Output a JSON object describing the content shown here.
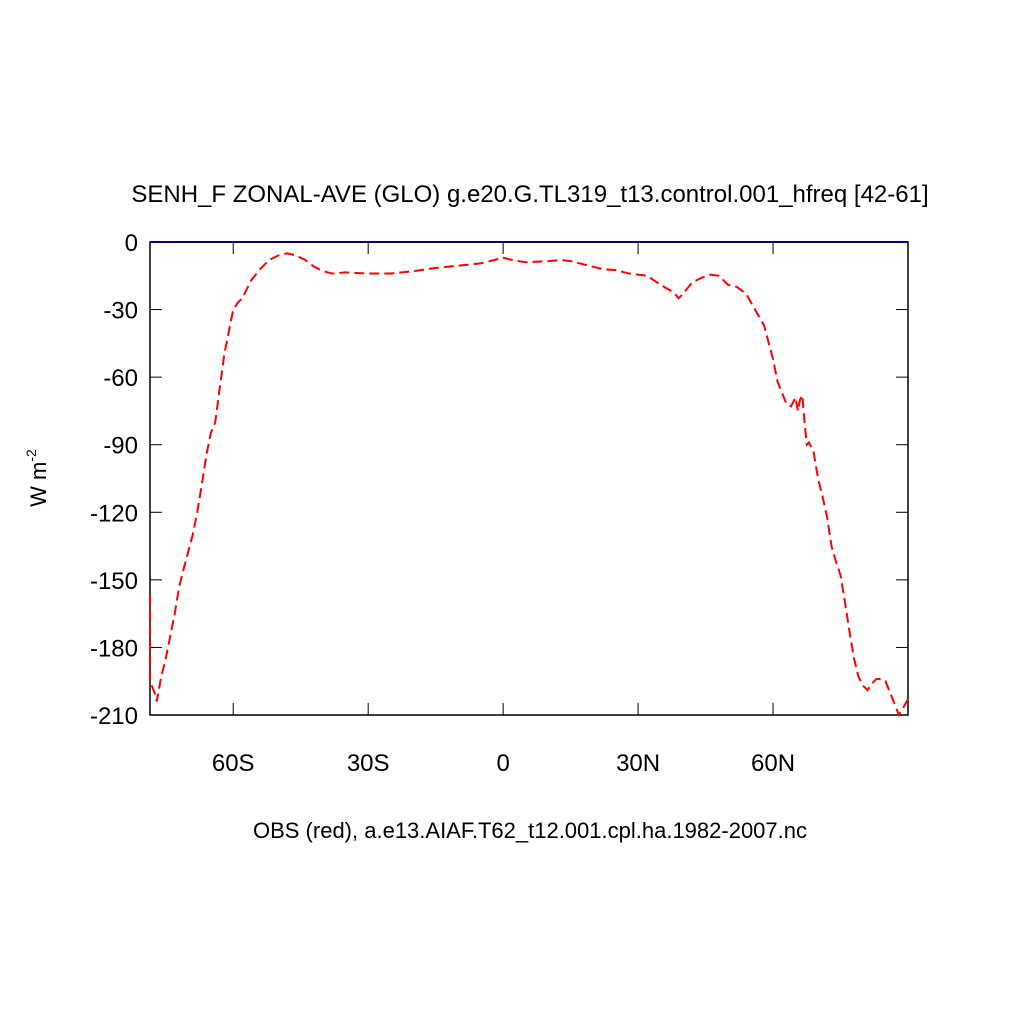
{
  "chart_data": {
    "type": "line",
    "title": "SENH_F ZONAL-AVE (GLO) g.e20.G.TL319_t13.control.001_hfreq [42-61]",
    "x_label": "OBS (red), a.e13.AIAF.T62_t12.001.cpl.ha.1982-2007.nc",
    "y_label": "W m",
    "y_label_superscript": "-2",
    "xlim": [
      -78.5,
      90
    ],
    "ylim": [
      -210,
      0
    ],
    "xticks": [
      {
        "value": -60,
        "label": "60S"
      },
      {
        "value": -30,
        "label": "30S"
      },
      0,
      {
        "value": 30,
        "label": "30N"
      },
      {
        "value": 60,
        "label": "60N"
      }
    ],
    "yticks": [
      0,
      -30,
      -60,
      -90,
      -120,
      -150,
      -180,
      -210
    ],
    "series": [
      {
        "color": "#000080",
        "dash": false,
        "x": [
          -78.5,
          90
        ],
        "values": [
          0,
          0
        ]
      },
      {
        "color": "#ff0000",
        "dash": true,
        "x": [
          -78.5,
          -78.5,
          -77.5,
          -77,
          -76,
          -75,
          -74,
          -73,
          -72,
          -71,
          -69,
          -68,
          -67,
          -66,
          -65,
          -64,
          -63,
          -62,
          -61,
          -60,
          -59,
          -58,
          -56,
          -54,
          -52,
          -50,
          -48,
          -46,
          -44,
          -42,
          -40,
          -38,
          -35,
          -30,
          -25,
          -20,
          -15,
          -10,
          -5,
          0,
          2,
          5,
          10,
          13,
          15,
          18,
          22,
          25,
          28,
          32,
          35,
          38,
          39,
          40,
          42,
          44,
          46,
          48,
          50,
          52,
          54,
          56,
          58,
          60,
          61,
          62,
          63,
          64,
          65,
          65.5,
          66,
          66.5,
          67,
          67.5,
          68,
          69,
          70,
          71,
          72,
          73,
          74,
          75,
          76,
          77,
          78,
          79,
          80,
          81,
          82,
          83,
          84,
          85,
          86,
          87,
          88,
          90
        ],
        "values": [
          -157,
          -195,
          -200,
          -204,
          -193,
          -185,
          -175,
          -165,
          -153,
          -145,
          -130,
          -120,
          -108,
          -95,
          -85,
          -80,
          -65,
          -50,
          -40,
          -30,
          -27,
          -25,
          -17,
          -12,
          -8,
          -6,
          -5,
          -6,
          -8,
          -11,
          -13,
          -14,
          -13.5,
          -14,
          -14,
          -13,
          -11.5,
          -10.5,
          -9.5,
          -7,
          -8,
          -9,
          -8.5,
          -8,
          -8.5,
          -10,
          -12,
          -12.5,
          -14,
          -15,
          -19,
          -22.5,
          -25,
          -23,
          -18,
          -16,
          -14.5,
          -15,
          -19,
          -20,
          -23,
          -30,
          -37,
          -52,
          -62,
          -67,
          -72,
          -73,
          -69,
          -75,
          -70,
          -68,
          -80,
          -90,
          -89,
          -93,
          -105,
          -113,
          -122,
          -135,
          -142,
          -148,
          -160,
          -173,
          -185,
          -193,
          -197,
          -199,
          -196,
          -194,
          -194,
          -195,
          -200,
          -205,
          -210,
          -203
        ]
      }
    ]
  }
}
